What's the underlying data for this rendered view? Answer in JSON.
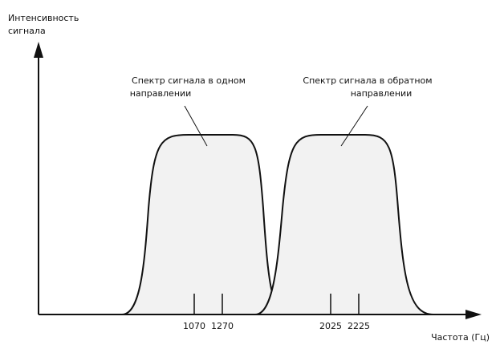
{
  "y_axis": {
    "label_lines": [
      "Интенсивность",
      "сигнала"
    ]
  },
  "x_axis": {
    "label": "Частота (Гц)",
    "ticks": [
      1070,
      1270,
      2025,
      2225
    ]
  },
  "annotations": [
    {
      "lines": [
        "Спектр сигнала в одном",
        "направлении"
      ]
    },
    {
      "lines": [
        "Спектр сигнала в обратном",
        "направлении"
      ]
    }
  ]
}
